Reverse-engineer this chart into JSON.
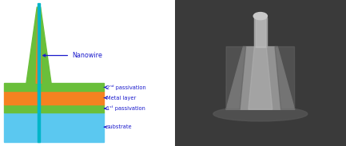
{
  "bg_color": "#ffffff",
  "colors": {
    "green": "#6abf3a",
    "orange": "#f58220",
    "teal": "#00b5c8",
    "blue_substrate": "#5bc8f0"
  },
  "labels": {
    "nanowire": "Nanowire",
    "passivation2": "2ⁿᵈ passivation",
    "metal": "Metal layer",
    "passivation1": "1ˢᵗ passivation",
    "substrate": "substrate"
  },
  "label_color": "#1a1acc",
  "arrow_color": "#1a1acc",
  "sem_bg": "#404040"
}
